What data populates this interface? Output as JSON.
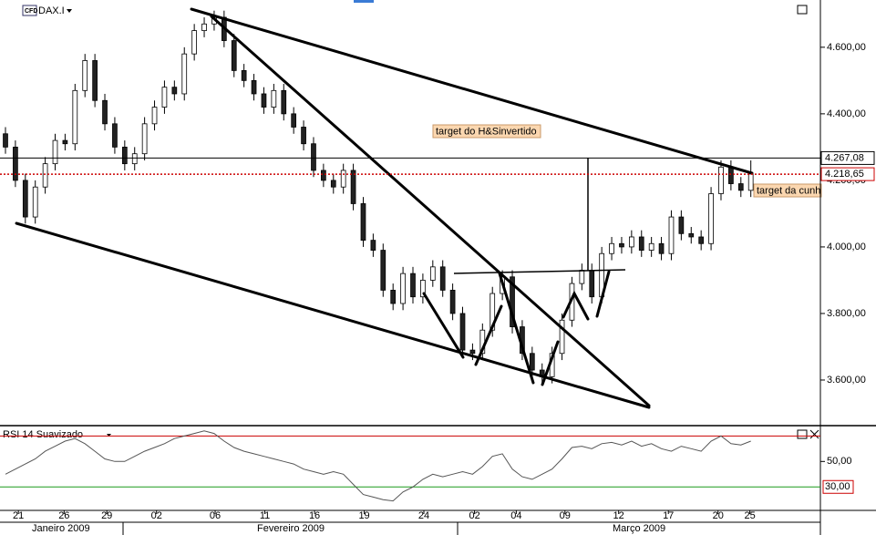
{
  "chart_data": {
    "type": "candlestick",
    "title": "DAX.I",
    "badge": "CFD",
    "xlim": [
      -0.55,
      82
    ],
    "ylim": [
      3463,
      4742
    ],
    "yticks": [
      {
        "value": 3600,
        "label": "3.600,00"
      },
      {
        "value": 3800,
        "label": "3.800,00"
      },
      {
        "value": 4000,
        "label": "4.000,00"
      },
      {
        "value": 4200,
        "label": "4.200,00"
      },
      {
        "value": 4400,
        "label": "4.400,00"
      },
      {
        "value": 4600,
        "label": "4.600,00"
      }
    ],
    "xticks": [
      {
        "value": 1.3,
        "label": "21"
      },
      {
        "value": 5.9,
        "label": "26"
      },
      {
        "value": 10.2,
        "label": "29"
      },
      {
        "value": 15.2,
        "label": "02"
      },
      {
        "value": 21.1,
        "label": "06"
      },
      {
        "value": 26.1,
        "label": "11"
      },
      {
        "value": 31.1,
        "label": "16"
      },
      {
        "value": 36.1,
        "label": "19"
      },
      {
        "value": 42.1,
        "label": "24"
      },
      {
        "value": 47.2,
        "label": "02"
      },
      {
        "value": 51.4,
        "label": "04"
      },
      {
        "value": 56.3,
        "label": "09"
      },
      {
        "value": 61.7,
        "label": "12"
      },
      {
        "value": 66.7,
        "label": "17"
      },
      {
        "value": 71.7,
        "label": "20"
      },
      {
        "value": 74.9,
        "label": "25"
      }
    ],
    "months": [
      "Janeiro 2009",
      "Fevereiro 2009",
      "Março 2009"
    ],
    "up_color": "#ffffff",
    "down_color": "#222222",
    "open": [
      4340,
      4300,
      4200,
      4090,
      4180,
      4250,
      4320,
      4310,
      4470,
      4560,
      4440,
      4370,
      4300,
      4250,
      4280,
      4370,
      4420,
      4480,
      4460,
      4580,
      4650,
      4670,
      4690,
      4620,
      4530,
      4500,
      4460,
      4420,
      4470,
      4400,
      4360,
      4310,
      4230,
      4200,
      4180,
      4230,
      4130,
      4020,
      3990,
      3870,
      3830,
      3920,
      3850,
      3900,
      3940,
      3870,
      3800,
      3690,
      3680,
      3750,
      3860,
      3910,
      3760,
      3680,
      3630,
      3610,
      3680,
      3780,
      3890,
      3930,
      3850,
      3980,
      4010,
      4000,
      4030,
      3990,
      4010,
      3980,
      4090,
      4040,
      4030,
      4010,
      4160,
      4240,
      4190,
      4170
    ],
    "high": [
      4360,
      4320,
      4220,
      4200,
      4270,
      4340,
      4340,
      4490,
      4580,
      4580,
      4460,
      4390,
      4320,
      4300,
      4390,
      4440,
      4500,
      4500,
      4600,
      4670,
      4690,
      4710,
      4710,
      4640,
      4550,
      4520,
      4480,
      4490,
      4490,
      4420,
      4380,
      4330,
      4250,
      4220,
      4250,
      4250,
      4150,
      4040,
      4010,
      3890,
      3940,
      3940,
      3920,
      3960,
      3960,
      3890,
      3820,
      3710,
      3770,
      3880,
      3930,
      3930,
      3780,
      3700,
      3650,
      3700,
      3800,
      3910,
      3950,
      3950,
      4000,
      4030,
      4030,
      4050,
      4050,
      4030,
      4030,
      4110,
      4110,
      4060,
      4050,
      4180,
      4260,
      4260,
      4210,
      4260
    ],
    "low": [
      4280,
      4180,
      4070,
      4070,
      4160,
      4230,
      4290,
      4290,
      4450,
      4420,
      4350,
      4280,
      4230,
      4230,
      4260,
      4350,
      4400,
      4440,
      4440,
      4560,
      4630,
      4650,
      4600,
      4510,
      4480,
      4440,
      4400,
      4400,
      4380,
      4340,
      4290,
      4210,
      4180,
      4160,
      4160,
      4110,
      4000,
      3970,
      3850,
      3810,
      3810,
      3830,
      3830,
      3880,
      3850,
      3780,
      3670,
      3660,
      3660,
      3730,
      3840,
      3740,
      3660,
      3610,
      3590,
      3590,
      3660,
      3760,
      3870,
      3830,
      3830,
      3960,
      3980,
      3980,
      3970,
      3970,
      3960,
      3960,
      4020,
      4010,
      3990,
      3990,
      4140,
      4170,
      4150,
      4150
    ],
    "close": [
      4300,
      4200,
      4090,
      4180,
      4250,
      4320,
      4310,
      4470,
      4560,
      4440,
      4370,
      4300,
      4250,
      4280,
      4370,
      4420,
      4480,
      4460,
      4580,
      4650,
      4670,
      4690,
      4620,
      4530,
      4500,
      4460,
      4420,
      4470,
      4400,
      4360,
      4310,
      4230,
      4200,
      4180,
      4230,
      4130,
      4020,
      3990,
      3870,
      3830,
      3920,
      3850,
      3900,
      3940,
      3870,
      3800,
      3690,
      3680,
      3750,
      3860,
      3910,
      3760,
      3680,
      3630,
      3610,
      3680,
      3780,
      3890,
      3930,
      3850,
      3980,
      4010,
      4000,
      4030,
      3990,
      4010,
      3980,
      4090,
      4040,
      4030,
      4010,
      4160,
      4240,
      4190,
      4170,
      4219
    ],
    "price_lines": [
      {
        "value": 4267.08,
        "label": "4.267,08",
        "color": "#000000",
        "text_color": "#cc0000",
        "style": "solid"
      },
      {
        "value": 4218.65,
        "label": "4.218,65",
        "color": "#cc0000",
        "text_color": "#000000",
        "style": "dotted"
      }
    ],
    "annotations": [
      "target do H&Sinvertido",
      "target da cunh"
    ],
    "indicator": {
      "type": "line",
      "title": "RSI 14 Suavizado",
      "color": "#555555",
      "ylim": [
        13,
        76
      ],
      "yticks": [
        {
          "value": 50,
          "label": "50,00"
        }
      ],
      "upper_level": 70,
      "upper_color": "#cc0000",
      "lower_level": {
        "value": 30,
        "label": "30,00"
      },
      "lower_color": "#1a9a1a",
      "values": [
        40,
        44,
        48,
        52,
        58,
        62,
        66,
        68,
        64,
        58,
        52,
        50,
        50,
        54,
        58,
        61,
        64,
        68,
        70,
        72,
        74,
        72,
        66,
        61,
        58,
        56,
        54,
        52,
        50,
        48,
        44,
        42,
        40,
        42,
        40,
        32,
        24,
        22,
        20,
        19,
        26,
        30,
        36,
        40,
        38,
        40,
        42,
        40,
        46,
        54,
        56,
        44,
        38,
        36,
        40,
        44,
        52,
        61,
        62,
        60,
        64,
        65,
        63,
        66,
        62,
        64,
        60,
        58,
        62,
        60,
        58,
        66,
        70,
        64,
        63,
        66
      ]
    }
  }
}
